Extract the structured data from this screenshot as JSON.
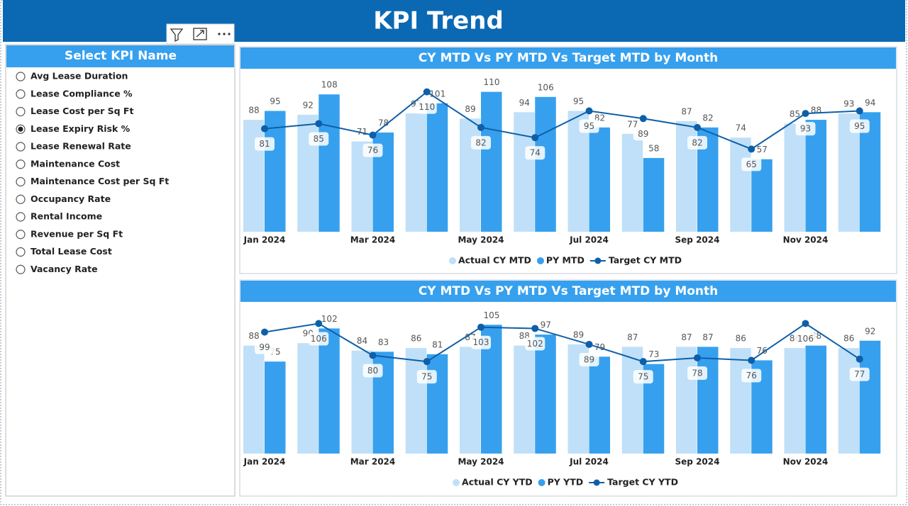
{
  "header": {
    "title": "KPI Trend"
  },
  "slicer": {
    "title": "Select KPI Name",
    "options": [
      "Avg Lease Duration",
      "Lease Compliance %",
      "Lease Cost per Sq Ft",
      "Lease Expiry Risk %",
      "Lease Renewal Rate",
      "Maintenance Cost",
      "Maintenance Cost per Sq Ft",
      "Occupancy Rate",
      "Rental Income",
      "Revenue per Sq Ft",
      "Total Lease Cost",
      "Vacancy Rate"
    ],
    "selected": 3
  },
  "chart_data": [
    {
      "type": "bar",
      "title": "CY MTD Vs PY MTD Vs Target MTD by Month",
      "categories": [
        "Jan 2024",
        null,
        "Mar 2024",
        null,
        "May 2024",
        null,
        "Jul 2024",
        null,
        "Sep 2024",
        null,
        "Nov 2024",
        null
      ],
      "series": [
        {
          "name": "Actual CY MTD",
          "type": "bar",
          "color": "#bfe0f8",
          "values": [
            88,
            92,
            71,
            93,
            89,
            94,
            95,
            77,
            87,
            74,
            85,
            93
          ]
        },
        {
          "name": "PY MTD",
          "type": "bar",
          "color": "#36a0ee",
          "values": [
            95,
            108,
            78,
            101,
            110,
            106,
            82,
            58,
            82,
            57,
            88,
            94
          ]
        },
        {
          "name": "Target CY MTD",
          "type": "line",
          "color": "#0e5fa8",
          "values": [
            81,
            85,
            76,
            110,
            82,
            74,
            95,
            89,
            82,
            65,
            93,
            95
          ]
        }
      ],
      "legend": "bottom"
    },
    {
      "type": "bar",
      "title": "CY MTD Vs PY MTD Vs Target MTD by Month",
      "categories": [
        "Jan 2024",
        null,
        "Mar 2024",
        null,
        "May 2024",
        null,
        "Jul 2024",
        null,
        "Sep 2024",
        null,
        "Nov 2024",
        null
      ],
      "series": [
        {
          "name": "Actual CY YTD",
          "type": "bar",
          "color": "#bfe0f8",
          "values": [
            88,
            90,
            84,
            86,
            87,
            88,
            89,
            87,
            87,
            86,
            86,
            86
          ]
        },
        {
          "name": "PY YTD",
          "type": "bar",
          "color": "#36a0ee",
          "values": [
            75,
            102,
            83,
            81,
            105,
            97,
            79,
            73,
            87,
            76,
            88,
            92
          ]
        },
        {
          "name": "Target CY YTD",
          "type": "line",
          "color": "#0e5fa8",
          "values": [
            99,
            106,
            80,
            75,
            103,
            102,
            89,
            75,
            78,
            76,
            106,
            77
          ]
        }
      ],
      "legend": "bottom"
    }
  ]
}
